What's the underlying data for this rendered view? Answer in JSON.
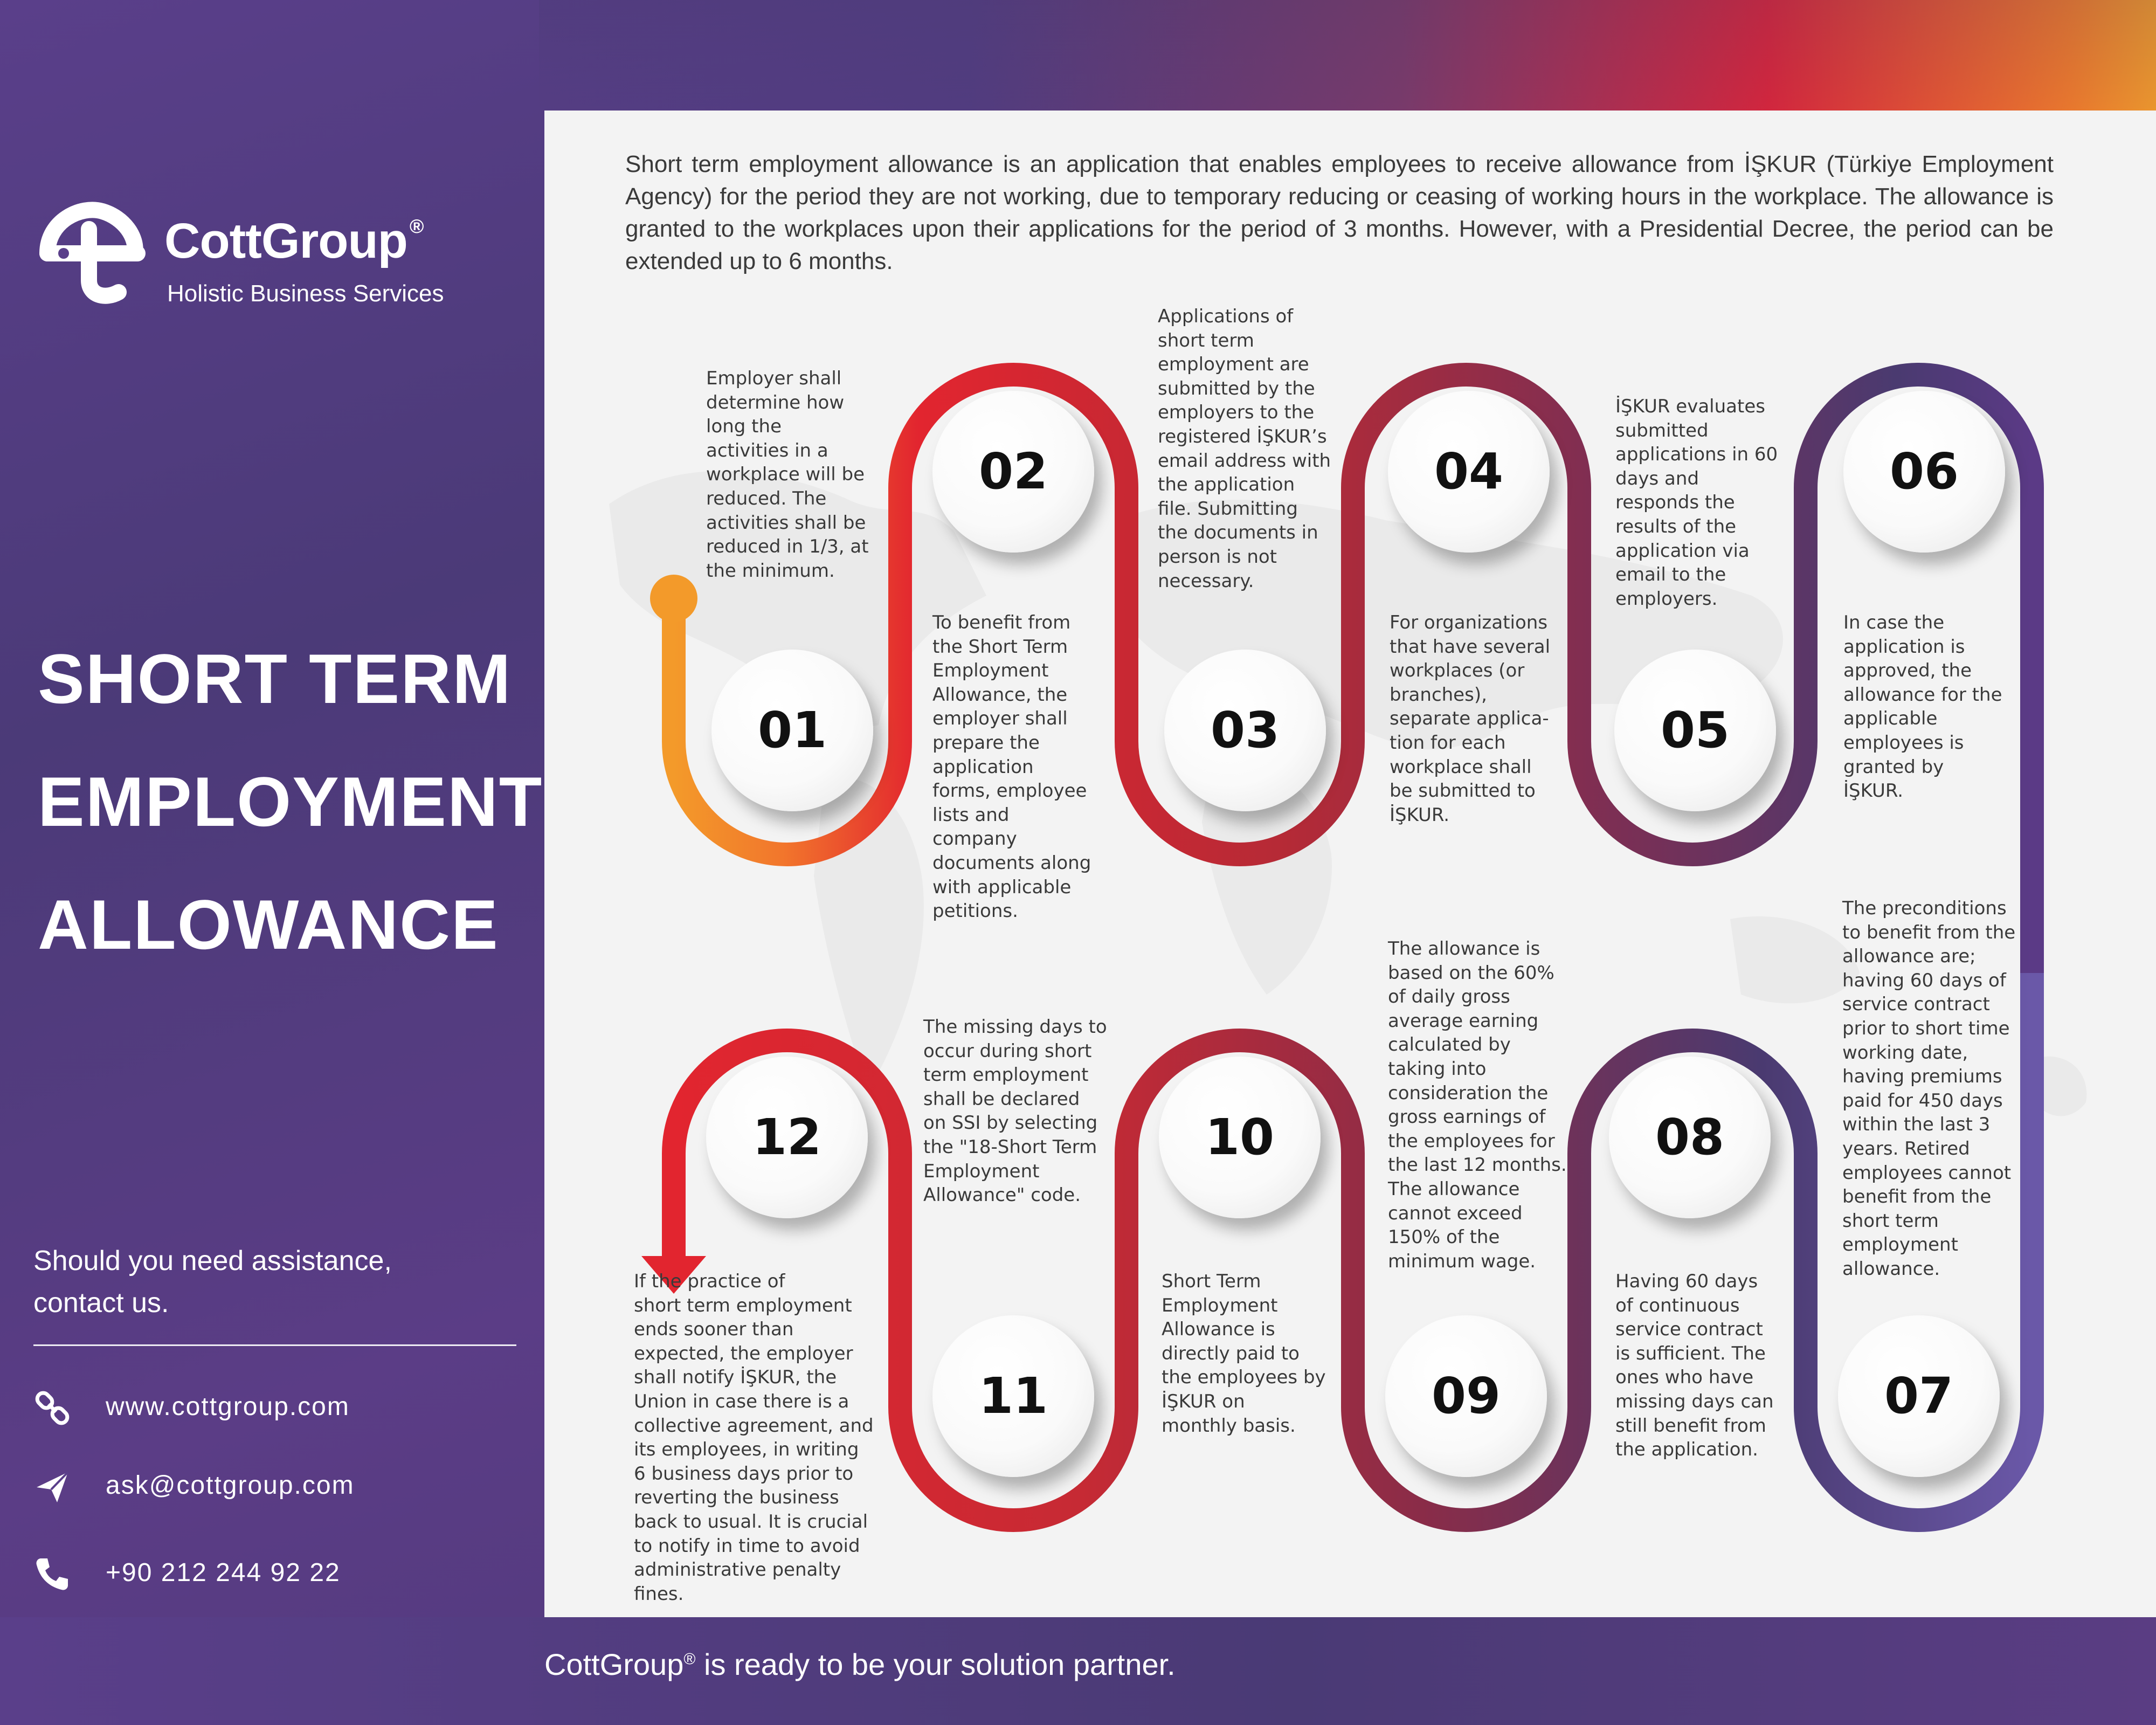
{
  "brand": {
    "name": "CottGroup",
    "registered": "®",
    "tagline": "Holistic Business Services"
  },
  "title_lines": [
    "SHORT TERM",
    "EMPLOYMENT",
    "ALLOWANCE"
  ],
  "assistance": {
    "line1": "Should you need assistance,",
    "line2": "contact us."
  },
  "contacts": [
    {
      "icon": "link-icon",
      "text": "www.cottgroup.com"
    },
    {
      "icon": "send-icon",
      "text": "ask@cottgroup.com"
    },
    {
      "icon": "phone-icon",
      "text": "+90 212 244 92 22"
    }
  ],
  "intro": "Short term employment allowance is an application that enables employees to receive allowance from İŞKUR (Türkiye Employment Agency) for the period they are not working, due to temporary reducing or ceasing of working hours in the workplace. The allowance is granted to the workplaces upon their applications for the period of 3 months. However, with a Presidential Decree, the period can be extended up to 6 months.",
  "steps": [
    {
      "num": "01",
      "text": "Employer shall\ndetermine how\nlong the\nactivities in a\nworkplace will be\nreduced. The\nactivities shall be\nreduced in 1/3, at\nthe minimum."
    },
    {
      "num": "02",
      "text": "To benefit from\nthe Short Term\nEmployment\nAllowance, the\nemployer shall\nprepare the\napplication\nforms, employee\nlists and\ncompany\ndocuments along\nwith applicable\npetitions."
    },
    {
      "num": "03",
      "text": "Applications of\nshort term\nemployment are\nsubmitted by the\nemployers to the\nregistered İŞKUR’s\nemail address with\nthe application\nfile. Submitting\nthe documents in\nperson is not\nnecessary."
    },
    {
      "num": "04",
      "text": "For organizations\nthat have several\nworkplaces (or\nbranches),\nseparate applica-\ntion for each\nworkplace shall\nbe submitted to\nİŞKUR."
    },
    {
      "num": "05",
      "text": "İŞKUR evaluates\nsubmitted\napplications in 60\ndays and\nresponds the\nresults of the\napplication via\nemail to the\nemployers."
    },
    {
      "num": "06",
      "text": "In case the\napplication is\napproved, the\nallowance for the\napplicable\nemployees is\ngranted by\nİŞKUR."
    },
    {
      "num": "07",
      "text": "The preconditions\nto benefit from the\nallowance are;\nhaving 60 days of\nservice contract\nprior to short time\nworking date,\nhaving premiums\npaid for 450 days\nwithin the last 3\nyears. Retired\nemployees cannot\nbenefit from the\nshort term\nemployment\nallowance."
    },
    {
      "num": "08",
      "text": "Having  60 days\nof continuous\nservice contract\nis sufficient. The\nones who have\nmissing days can\nstill benefit from\nthe application."
    },
    {
      "num": "09",
      "text": "The allowance is\nbased on the 60%\nof daily gross\naverage earning\ncalculated by\ntaking into\nconsideration the\ngross earnings of\nthe employees for\nthe last 12 months.\nThe allowance\ncannot exceed\n150% of the\nminimum wage."
    },
    {
      "num": "10",
      "text": "Short Term\nEmployment\nAllowance is\ndirectly paid to\nthe employees by\nİŞKUR on\nmonthly basis."
    },
    {
      "num": "11",
      "text": "The missing days to\noccur during short\nterm employment\nshall be declared\non SSI by selecting\nthe \"18-Short Term\nEmployment\nAllowance\" code."
    },
    {
      "num": "12",
      "text": "      If the practice of\nshort term employment\nends sooner than\nexpected, the employer\nshall notify İŞKUR, the\nUnion in case there is a\ncollective agreement, and\nits employees, in writing\n6 business days prior to\nreverting the business\nback to usual. It is crucial\nto notify in time to avoid\nadministrative penalty\nfines."
    }
  ],
  "footer": {
    "brand": "CottGroup",
    "registered": "®",
    "text": " is ready to be your solution partner."
  },
  "colors": {
    "path_start": "#f39a2a",
    "path_red": "#e2252f",
    "path_mid": "#a4283a",
    "path_purple": "#5b3a86",
    "path_light_purple": "#6a58a8"
  }
}
